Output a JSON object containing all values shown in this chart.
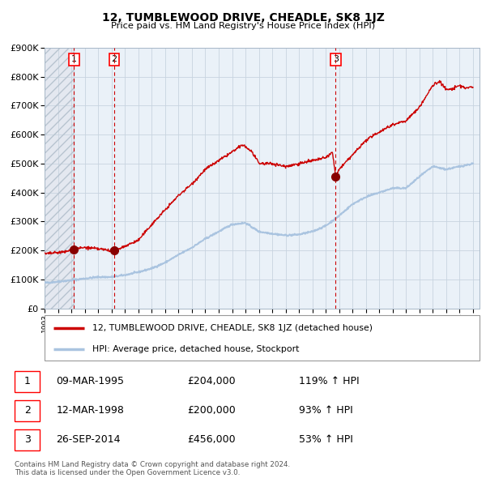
{
  "title": "12, TUMBLEWOOD DRIVE, CHEADLE, SK8 1JZ",
  "subtitle": "Price paid vs. HM Land Registry's House Price Index (HPI)",
  "legend_line1": "12, TUMBLEWOOD DRIVE, CHEADLE, SK8 1JZ (detached house)",
  "legend_line2": "HPI: Average price, detached house, Stockport",
  "table": [
    {
      "num": 1,
      "date": "09-MAR-1995",
      "price": "£204,000",
      "pct": "119% ↑ HPI"
    },
    {
      "num": 2,
      "date": "12-MAR-1998",
      "price": "£200,000",
      "pct": "93% ↑ HPI"
    },
    {
      "num": 3,
      "date": "26-SEP-2014",
      "price": "£456,000",
      "pct": "53% ↑ HPI"
    }
  ],
  "footnote": "Contains HM Land Registry data © Crown copyright and database right 2024.\nThis data is licensed under the Open Government Licence v3.0.",
  "sales": [
    {
      "year": 1995.19,
      "price": 204000
    },
    {
      "year": 1998.19,
      "price": 200000
    },
    {
      "year": 2014.73,
      "price": 456000
    }
  ],
  "hpi_color": "#aac4e0",
  "price_color": "#cc0000",
  "sale_dot_color": "#880000",
  "dashed_line_color": "#cc0000",
  "grid_color": "#c8d4e0",
  "ylim": [
    0,
    900000
  ],
  "yticks": [
    0,
    100000,
    200000,
    300000,
    400000,
    500000,
    600000,
    700000,
    800000,
    900000
  ],
  "xlim_start": 1993.0,
  "xlim_end": 2025.5,
  "hpi_anchors_x": [
    1993,
    1994,
    1995,
    1996,
    1997,
    1998,
    1999,
    2000,
    2001,
    2002,
    2003,
    2004,
    2005,
    2006,
    2007,
    2008,
    2009,
    2010,
    2011,
    2012,
    2013,
    2014,
    2015,
    2016,
    2017,
    2018,
    2019,
    2020,
    2021,
    2022,
    2023,
    2024,
    2025
  ],
  "hpi_anchors_y": [
    88000,
    92000,
    97000,
    103000,
    108000,
    108000,
    115000,
    125000,
    138000,
    158000,
    185000,
    210000,
    240000,
    265000,
    290000,
    295000,
    265000,
    258000,
    252000,
    255000,
    265000,
    285000,
    320000,
    360000,
    385000,
    400000,
    415000,
    415000,
    455000,
    490000,
    480000,
    490000,
    500000
  ],
  "price_anchors_x": [
    1993.0,
    1994.5,
    1995.19,
    1996,
    1997,
    1998.0,
    1998.19,
    1999,
    2000,
    2001,
    2002,
    2003,
    2004,
    2005,
    2006,
    2007.0,
    2007.8,
    2008.5,
    2009.0,
    2010,
    2011,
    2012,
    2013,
    2014.0,
    2014.5,
    2014.73,
    2015,
    2016,
    2017,
    2018,
    2019,
    2020,
    2021,
    2022,
    2022.5,
    2023,
    2023.5,
    2024,
    2024.5,
    2025
  ],
  "price_anchors_y": [
    188000,
    195000,
    204000,
    210000,
    205000,
    200000,
    200000,
    215000,
    235000,
    290000,
    340000,
    390000,
    430000,
    480000,
    510000,
    540000,
    565000,
    540000,
    500000,
    500000,
    490000,
    500000,
    510000,
    520000,
    540000,
    456000,
    480000,
    530000,
    580000,
    610000,
    635000,
    648000,
    695000,
    770000,
    785000,
    755000,
    758000,
    770000,
    760000,
    765000
  ]
}
